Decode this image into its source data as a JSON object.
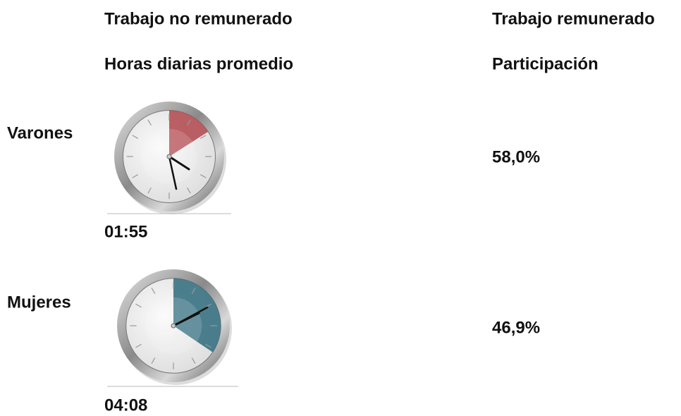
{
  "header": {
    "unpaid_title": "Trabajo no remunerado",
    "unpaid_subtitle": "Horas diarias promedio",
    "paid_title": "Trabajo remunerado",
    "paid_subtitle": "Participación"
  },
  "rows": [
    {
      "label": "Varones",
      "time": "01:55",
      "participation": "58,0%",
      "color": "#b0454a"
    },
    {
      "label": "Mujeres",
      "time": "04:08",
      "participation": "46,9%",
      "color": "#2e6b7d"
    }
  ]
}
